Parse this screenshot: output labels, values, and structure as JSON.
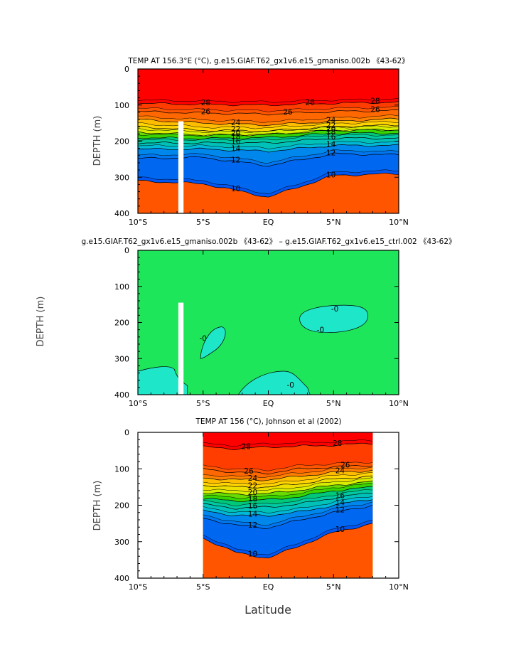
{
  "chart_data": [
    {
      "type": "heatmap",
      "title": "TEMP AT 156.3°E (°C), g.e15.GIAF.T62_gx1v6.e15_gmaniso.002b 《43-62》",
      "ylabel": "DEPTH (m)",
      "xlabel": "",
      "x_ticks": [
        "10°S",
        "5°S",
        "EQ",
        "5°N",
        "10°N"
      ],
      "y_ticks": [
        "0",
        "100",
        "200",
        "300",
        "400"
      ],
      "xlim": [
        -10,
        10
      ],
      "ylim": [
        0,
        400
      ],
      "y_inverted": true,
      "contour_levels": [
        28,
        26,
        24,
        22,
        20,
        18,
        16,
        14,
        12,
        10
      ],
      "contour_labels": [
        "28",
        "28",
        "28",
        "26",
        "26",
        "26",
        "24",
        "24",
        "22",
        "22",
        "20",
        "20",
        "18",
        "18",
        "16",
        "16",
        "14",
        "14",
        "12",
        "12",
        "10",
        "10"
      ],
      "depth_of_isotherm": [
        {
          "temp": 28,
          "lat": [
            -10,
            -5,
            0,
            5,
            10
          ],
          "depth": [
            95,
            98,
            100,
            95,
            92
          ]
        },
        {
          "temp": 26,
          "lat": [
            -10,
            -5,
            0,
            5,
            10
          ],
          "depth": [
            118,
            122,
            125,
            118,
            115
          ]
        },
        {
          "temp": 24,
          "lat": [
            -10,
            -5,
            0,
            5,
            10
          ],
          "depth": [
            140,
            150,
            155,
            145,
            138
          ]
        },
        {
          "temp": 22,
          "lat": [
            -10,
            -5,
            0,
            5,
            10
          ],
          "depth": [
            160,
            170,
            172,
            160,
            155
          ]
        },
        {
          "temp": 20,
          "lat": [
            -10,
            -5,
            0,
            5,
            10
          ],
          "depth": [
            175,
            183,
            182,
            170,
            168
          ]
        },
        {
          "temp": 18,
          "lat": [
            -10,
            -5,
            0,
            5,
            10
          ],
          "depth": [
            190,
            193,
            190,
            178,
            178
          ]
        },
        {
          "temp": 16,
          "lat": [
            -10,
            -5,
            0,
            5,
            10
          ],
          "depth": [
            205,
            205,
            205,
            192,
            192
          ]
        },
        {
          "temp": 14,
          "lat": [
            -10,
            -5,
            0,
            5,
            10
          ],
          "depth": [
            222,
            222,
            228,
            212,
            212
          ]
        },
        {
          "temp": 12,
          "lat": [
            -10,
            -5,
            0,
            5,
            10
          ],
          "depth": [
            248,
            245,
            268,
            235,
            238
          ]
        },
        {
          "temp": 10,
          "lat": [
            -10,
            -5,
            0,
            5,
            10
          ],
          "depth": [
            310,
            318,
            355,
            295,
            290
          ]
        }
      ],
      "masked_column": {
        "lat": [
          -6.9,
          -6.5
        ],
        "depth": [
          145,
          400
        ]
      }
    },
    {
      "type": "heatmap",
      "title": "g.e15.GIAF.T62_gx1v6.e15_gmaniso.002b 《43-62》 – g.e15.GIAF.T62_gx1v6.e15_ctrl.002 《43-62》",
      "ylabel": "DEPTH (m)",
      "xlabel": "",
      "x_ticks": [
        "10°S",
        "5°S",
        "EQ",
        "5°N",
        "10°N"
      ],
      "y_ticks": [
        "0",
        "100",
        "200",
        "300",
        "400"
      ],
      "xlim": [
        -10,
        10
      ],
      "ylim": [
        0,
        400
      ],
      "y_inverted": true,
      "background_level": "near zero",
      "contour_labels": [
        "0",
        "0",
        "0",
        "0"
      ],
      "negative_regions": [
        {
          "lat_range": [
            -10,
            -6.5
          ],
          "depth_range": [
            320,
            400
          ]
        },
        {
          "lat_range": [
            -5.2,
            -3.2
          ],
          "depth_range": [
            210,
            300
          ]
        },
        {
          "lat_range": [
            -2.2,
            2.8
          ],
          "depth_range": [
            335,
            400
          ]
        },
        {
          "lat_range": [
            2.5,
            7.5
          ],
          "depth_range": [
            150,
            230
          ]
        }
      ],
      "masked_column": {
        "lat": [
          -6.9,
          -6.5
        ],
        "depth": [
          145,
          400
        ]
      }
    },
    {
      "type": "heatmap",
      "title": "TEMP AT 156 (°C), Johnson et al (2002)",
      "ylabel": "DEPTH (m)",
      "xlabel": "Latitude",
      "x_ticks": [
        "10°S",
        "5°S",
        "EQ",
        "5°N",
        "10°N"
      ],
      "y_ticks": [
        "0",
        "100",
        "200",
        "300",
        "400"
      ],
      "xlim": [
        -10,
        10
      ],
      "ylim": [
        0,
        400
      ],
      "y_inverted": true,
      "data_extent_lat": [
        -5,
        8
      ],
      "contour_labels": [
        "28",
        "28",
        "26",
        "26",
        "24",
        "24",
        "22",
        "20",
        "18",
        "16",
        "16",
        "14",
        "14",
        "12",
        "12",
        "10",
        "10"
      ],
      "depth_of_isotherm": [
        {
          "temp": 28,
          "lat": [
            -5,
            -2.5,
            0,
            2.5,
            5,
            8
          ],
          "depth": [
            40,
            45,
            40,
            38,
            35,
            30
          ]
        },
        {
          "temp": 26,
          "lat": [
            -5,
            -2.5,
            0,
            2.5,
            5,
            8
          ],
          "depth": [
            100,
            110,
            112,
            100,
            95,
            90
          ]
        },
        {
          "temp": 24,
          "lat": [
            -5,
            -2.5,
            0,
            2.5,
            5,
            8
          ],
          "depth": [
            125,
            130,
            130,
            120,
            110,
            105
          ]
        },
        {
          "temp": 22,
          "lat": [
            -5,
            -2.5,
            0,
            2.5,
            5,
            8
          ],
          "depth": [
            145,
            150,
            150,
            140,
            128,
            120
          ]
        },
        {
          "temp": 20,
          "lat": [
            -5,
            -2.5,
            0,
            2.5,
            5,
            8
          ],
          "depth": [
            165,
            170,
            168,
            158,
            145,
            135
          ]
        },
        {
          "temp": 18,
          "lat": [
            -5,
            -2.5,
            0,
            2.5,
            5,
            8
          ],
          "depth": [
            182,
            188,
            185,
            176,
            160,
            150
          ]
        },
        {
          "temp": 16,
          "lat": [
            -5,
            -2.5,
            0,
            2.5,
            5,
            8
          ],
          "depth": [
            198,
            208,
            205,
            196,
            180,
            165
          ]
        },
        {
          "temp": 14,
          "lat": [
            -5,
            -2.5,
            0,
            2.5,
            5,
            8
          ],
          "depth": [
            215,
            228,
            228,
            218,
            200,
            182
          ]
        },
        {
          "temp": 12,
          "lat": [
            -5,
            -2.5,
            0,
            2.5,
            5,
            8
          ],
          "depth": [
            235,
            255,
            262,
            240,
            220,
            200
          ]
        },
        {
          "temp": 10,
          "lat": [
            -5,
            -2.5,
            0,
            2.5,
            5,
            8
          ],
          "depth": [
            290,
            330,
            345,
            310,
            275,
            250
          ]
        }
      ]
    }
  ]
}
